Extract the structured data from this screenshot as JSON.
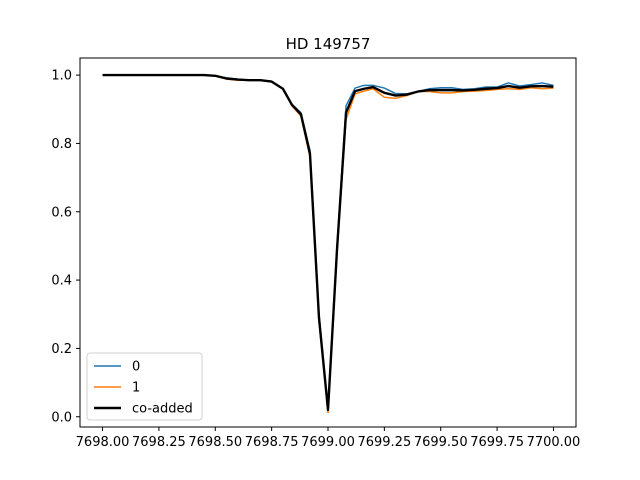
{
  "chart_data": {
    "type": "line",
    "title": "HD 149757",
    "xlabel": "",
    "ylabel": "",
    "xlim": [
      7697.9,
      7700.1
    ],
    "ylim": [
      -0.03,
      1.05
    ],
    "x_ticks": [
      7698.0,
      7698.25,
      7698.5,
      7698.75,
      7699.0,
      7699.25,
      7699.5,
      7699.75,
      7700.0
    ],
    "x_tick_labels": [
      "7698.00",
      "7698.25",
      "7698.50",
      "7698.75",
      "7699.00",
      "7699.25",
      "7699.50",
      "7699.75",
      "7700.00"
    ],
    "y_ticks": [
      0.0,
      0.2,
      0.4,
      0.6,
      0.8,
      1.0
    ],
    "y_tick_labels": [
      "0.0",
      "0.2",
      "0.4",
      "0.6",
      "0.8",
      "1.0"
    ],
    "grid": false,
    "legend_position": "lower-left",
    "series": [
      {
        "name": "0",
        "color": "#1f77b4",
        "width": 1.5,
        "x": [
          7698.0,
          7698.05,
          7698.1,
          7698.15,
          7698.2,
          7698.25,
          7698.3,
          7698.35,
          7698.4,
          7698.45,
          7698.5,
          7698.55,
          7698.6,
          7698.65,
          7698.7,
          7698.75,
          7698.8,
          7698.84,
          7698.88,
          7698.92,
          7698.96,
          7699.0,
          7699.04,
          7699.08,
          7699.12,
          7699.16,
          7699.2,
          7699.25,
          7699.3,
          7699.35,
          7699.4,
          7699.45,
          7699.5,
          7699.55,
          7699.6,
          7699.65,
          7699.7,
          7699.75,
          7699.8,
          7699.85,
          7699.9,
          7699.95,
          7700.0
        ],
        "y": [
          1.0,
          1.0,
          1.0,
          1.0,
          1.0,
          1.0,
          1.0,
          1.0,
          1.0,
          1.0,
          0.998,
          0.992,
          0.988,
          0.985,
          0.986,
          0.982,
          0.96,
          0.915,
          0.89,
          0.78,
          0.3,
          0.025,
          0.5,
          0.91,
          0.962,
          0.97,
          0.97,
          0.962,
          0.946,
          0.945,
          0.952,
          0.96,
          0.963,
          0.963,
          0.958,
          0.96,
          0.965,
          0.965,
          0.977,
          0.968,
          0.972,
          0.977,
          0.97
        ]
      },
      {
        "name": "1",
        "color": "#ff7f0e",
        "width": 1.5,
        "x": [
          7698.0,
          7698.05,
          7698.1,
          7698.15,
          7698.2,
          7698.25,
          7698.3,
          7698.35,
          7698.4,
          7698.45,
          7698.5,
          7698.55,
          7698.6,
          7698.65,
          7698.7,
          7698.75,
          7698.8,
          7698.84,
          7698.88,
          7698.92,
          7698.96,
          7699.0,
          7699.04,
          7699.08,
          7699.12,
          7699.16,
          7699.2,
          7699.25,
          7699.3,
          7699.35,
          7699.4,
          7699.45,
          7699.5,
          7699.55,
          7699.6,
          7699.65,
          7699.7,
          7699.75,
          7699.8,
          7699.85,
          7699.9,
          7699.95,
          7700.0
        ],
        "y": [
          1.0,
          1.0,
          1.0,
          1.0,
          1.0,
          1.0,
          1.0,
          1.0,
          1.0,
          1.0,
          0.997,
          0.988,
          0.985,
          0.985,
          0.985,
          0.98,
          0.96,
          0.91,
          0.88,
          0.76,
          0.28,
          0.012,
          0.48,
          0.87,
          0.945,
          0.953,
          0.96,
          0.935,
          0.932,
          0.94,
          0.952,
          0.952,
          0.948,
          0.948,
          0.952,
          0.953,
          0.955,
          0.958,
          0.96,
          0.958,
          0.963,
          0.96,
          0.962
        ]
      },
      {
        "name": "co-added",
        "color": "#000000",
        "width": 2.4,
        "x": [
          7698.0,
          7698.05,
          7698.1,
          7698.15,
          7698.2,
          7698.25,
          7698.3,
          7698.35,
          7698.4,
          7698.45,
          7698.5,
          7698.55,
          7698.6,
          7698.65,
          7698.7,
          7698.75,
          7698.8,
          7698.84,
          7698.88,
          7698.92,
          7698.96,
          7699.0,
          7699.04,
          7699.08,
          7699.12,
          7699.16,
          7699.2,
          7699.25,
          7699.3,
          7699.35,
          7699.4,
          7699.45,
          7699.5,
          7699.55,
          7699.6,
          7699.65,
          7699.7,
          7699.75,
          7699.8,
          7699.85,
          7699.9,
          7699.95,
          7700.0
        ],
        "y": [
          1.0,
          1.0,
          1.0,
          1.0,
          1.0,
          1.0,
          1.0,
          1.0,
          1.0,
          1.0,
          0.998,
          0.99,
          0.987,
          0.985,
          0.985,
          0.981,
          0.96,
          0.913,
          0.885,
          0.77,
          0.29,
          0.02,
          0.49,
          0.89,
          0.953,
          0.96,
          0.965,
          0.948,
          0.94,
          0.943,
          0.952,
          0.956,
          0.956,
          0.956,
          0.955,
          0.957,
          0.96,
          0.962,
          0.968,
          0.963,
          0.967,
          0.968,
          0.966
        ]
      }
    ]
  }
}
